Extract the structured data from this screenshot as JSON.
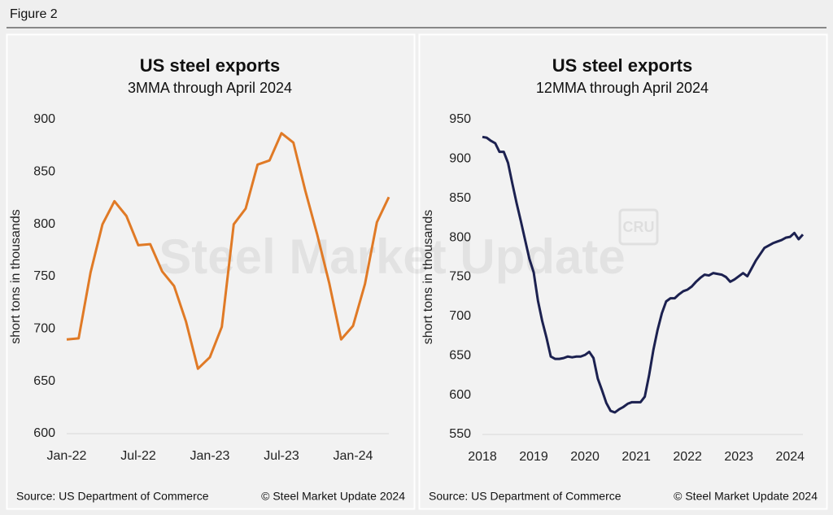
{
  "figure_label": "Figure 2",
  "watermark": "Steel Market Update",
  "watermark_logo": "CRU",
  "chart_data": [
    {
      "type": "line",
      "title": "US steel exports",
      "subtitle": "3MMA through April 2024",
      "y_label": "short tons in thousands",
      "color": "#e07a26",
      "categories": [
        "Jan-22",
        null,
        null,
        null,
        null,
        null,
        "Jul-22",
        null,
        null,
        null,
        null,
        null,
        "Jan-23",
        null,
        null,
        null,
        null,
        null,
        "Jul-23",
        null,
        null,
        null,
        null,
        null,
        "Jan-24",
        null,
        null,
        null
      ],
      "values": [
        690,
        691,
        754,
        800,
        822,
        808,
        780,
        781,
        755,
        741,
        707,
        662,
        673,
        702,
        800,
        815,
        857,
        861,
        887,
        878,
        832,
        790,
        744,
        690,
        703,
        743,
        802,
        826
      ],
      "ylim": [
        600,
        900
      ],
      "yticks": [
        600,
        650,
        700,
        750,
        800,
        850,
        900
      ],
      "grid": false,
      "source": "Source: US Department of Commerce",
      "copyright": "© Steel Market Update 2024"
    },
    {
      "type": "line",
      "title": "US steel exports",
      "subtitle": "12MMA through April 2024",
      "y_label": "short tons in thousands",
      "color": "#1c2150",
      "categories": [
        "2018",
        null,
        null,
        null,
        null,
        null,
        null,
        null,
        null,
        null,
        null,
        null,
        "2019",
        null,
        null,
        null,
        null,
        null,
        null,
        null,
        null,
        null,
        null,
        null,
        "2020",
        null,
        null,
        null,
        null,
        null,
        null,
        null,
        null,
        null,
        null,
        null,
        "2021",
        null,
        null,
        null,
        null,
        null,
        null,
        null,
        null,
        null,
        null,
        null,
        "2022",
        null,
        null,
        null,
        null,
        null,
        null,
        null,
        null,
        null,
        null,
        null,
        "2023",
        null,
        null,
        null,
        null,
        null,
        null,
        null,
        null,
        null,
        null,
        null,
        "2024",
        null,
        null,
        null
      ],
      "values": [
        928,
        927,
        923,
        920,
        909,
        909,
        895,
        869,
        844,
        821,
        797,
        773,
        756,
        720,
        694,
        673,
        649,
        646,
        646,
        647,
        649,
        648,
        649,
        649,
        651,
        655,
        647,
        621,
        606,
        590,
        580,
        578,
        582,
        585,
        589,
        591,
        591,
        591,
        598,
        625,
        657,
        683,
        704,
        719,
        723,
        723,
        728,
        732,
        734,
        738,
        744,
        749,
        753,
        752,
        755,
        754,
        753,
        750,
        744,
        747,
        751,
        755,
        751,
        761,
        771,
        779,
        787,
        790,
        793,
        795,
        797,
        800,
        801,
        806,
        798,
        804
      ],
      "ylim": [
        550,
        950
      ],
      "yticks": [
        550,
        600,
        650,
        700,
        750,
        800,
        850,
        900,
        950
      ],
      "grid": false,
      "source": "Source: US Department of Commerce",
      "copyright": "© Steel Market Update 2024"
    }
  ]
}
